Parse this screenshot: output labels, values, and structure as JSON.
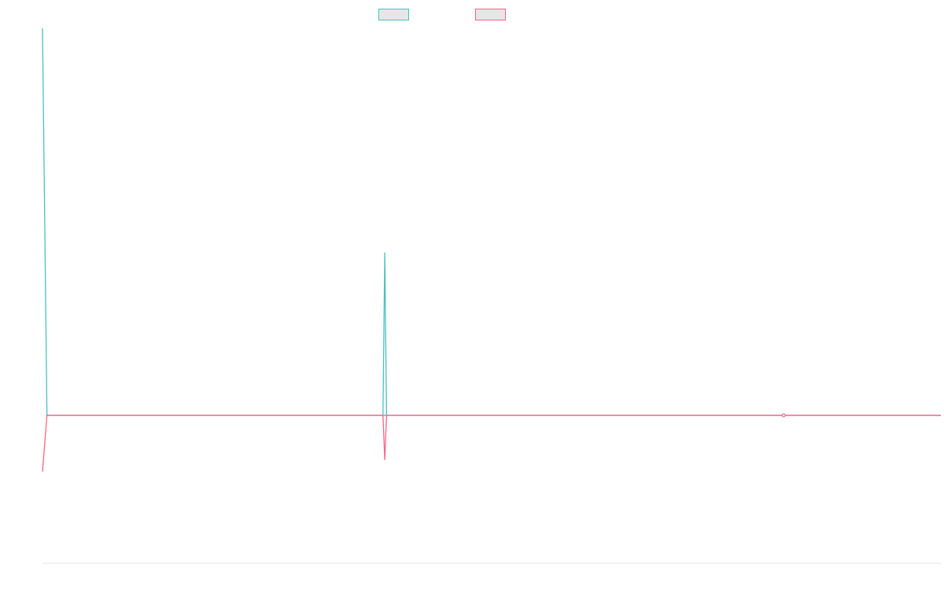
{
  "chart_data": {
    "type": "line",
    "title": "",
    "xlabel": "",
    "ylabel": "",
    "x_count": 2,
    "x": [
      "",
      ""
    ],
    "ylim": [
      -1.0,
      1.0
    ],
    "grid": false,
    "legend_position": "top",
    "series": [
      {
        "label": "",
        "color": "#4bc0c0",
        "fill": "#e6e6e6",
        "points": [
          {
            "x": 0.0,
            "y": 1.0
          },
          {
            "x": 0.005,
            "y": 0.0
          },
          {
            "x": 0.379,
            "y": 0.0
          },
          {
            "x": 0.381,
            "y": 0.42
          },
          {
            "x": 0.383,
            "y": 0.0
          },
          {
            "x": 1.0,
            "y": 0.0
          }
        ]
      },
      {
        "label": "",
        "color": "#ff6384",
        "fill": "#e6e6e6",
        "points": [
          {
            "x": 0.0,
            "y": -0.38
          },
          {
            "x": 0.005,
            "y": 0.0
          },
          {
            "x": 0.379,
            "y": 0.0
          },
          {
            "x": 0.381,
            "y": -0.3
          },
          {
            "x": 0.383,
            "y": 0.0
          },
          {
            "x": 0.825,
            "y": 0.0
          },
          {
            "x": 1.0,
            "y": 0.0
          }
        ]
      }
    ]
  }
}
